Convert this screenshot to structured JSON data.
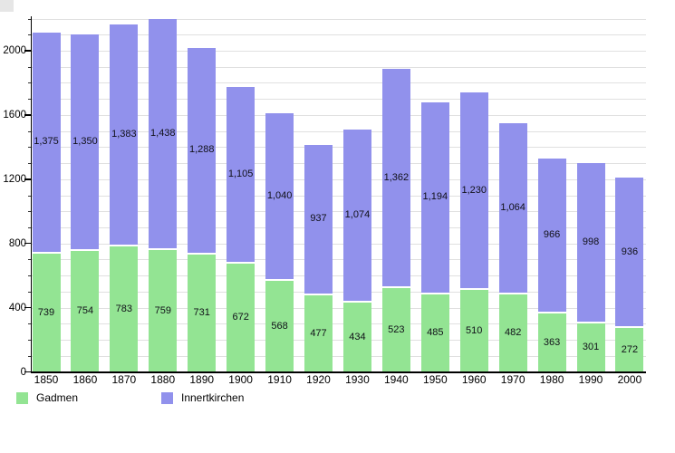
{
  "chart_data": {
    "type": "bar",
    "stacked": true,
    "title": "",
    "xlabel": "",
    "ylabel": "",
    "categories": [
      "1850",
      "1860",
      "1870",
      "1880",
      "1890",
      "1900",
      "1910",
      "1920",
      "1930",
      "1940",
      "1950",
      "1960",
      "1970",
      "1980",
      "1990",
      "2000"
    ],
    "series": [
      {
        "name": "Gadmen",
        "color": "#93E493",
        "values": [
          739,
          754,
          783,
          759,
          731,
          672,
          568,
          477,
          434,
          523,
          485,
          510,
          482,
          363,
          301,
          272
        ]
      },
      {
        "name": "Innertkirchen",
        "color": "#9191EC",
        "values": [
          1375,
          1350,
          1383,
          1438,
          1288,
          1105,
          1040,
          937,
          1074,
          1362,
          1194,
          1230,
          1064,
          966,
          998,
          936
        ]
      }
    ],
    "ylim": [
      0,
      2206
    ],
    "yticks": [
      0,
      400,
      800,
      1200,
      1600,
      2000
    ],
    "minor_grid_step": 100,
    "grid": true,
    "legend_position": "bottom",
    "colors": {
      "grid": "#e0e0e0",
      "axis": "#000000",
      "value_label": "#101018",
      "background": "#ffffff",
      "corner_artifact": "#e6e6e6"
    }
  },
  "legend": {
    "items": [
      {
        "label": "Gadmen",
        "color": "#93E493"
      },
      {
        "label": "Innertkirchen",
        "color": "#9191EC"
      }
    ]
  }
}
